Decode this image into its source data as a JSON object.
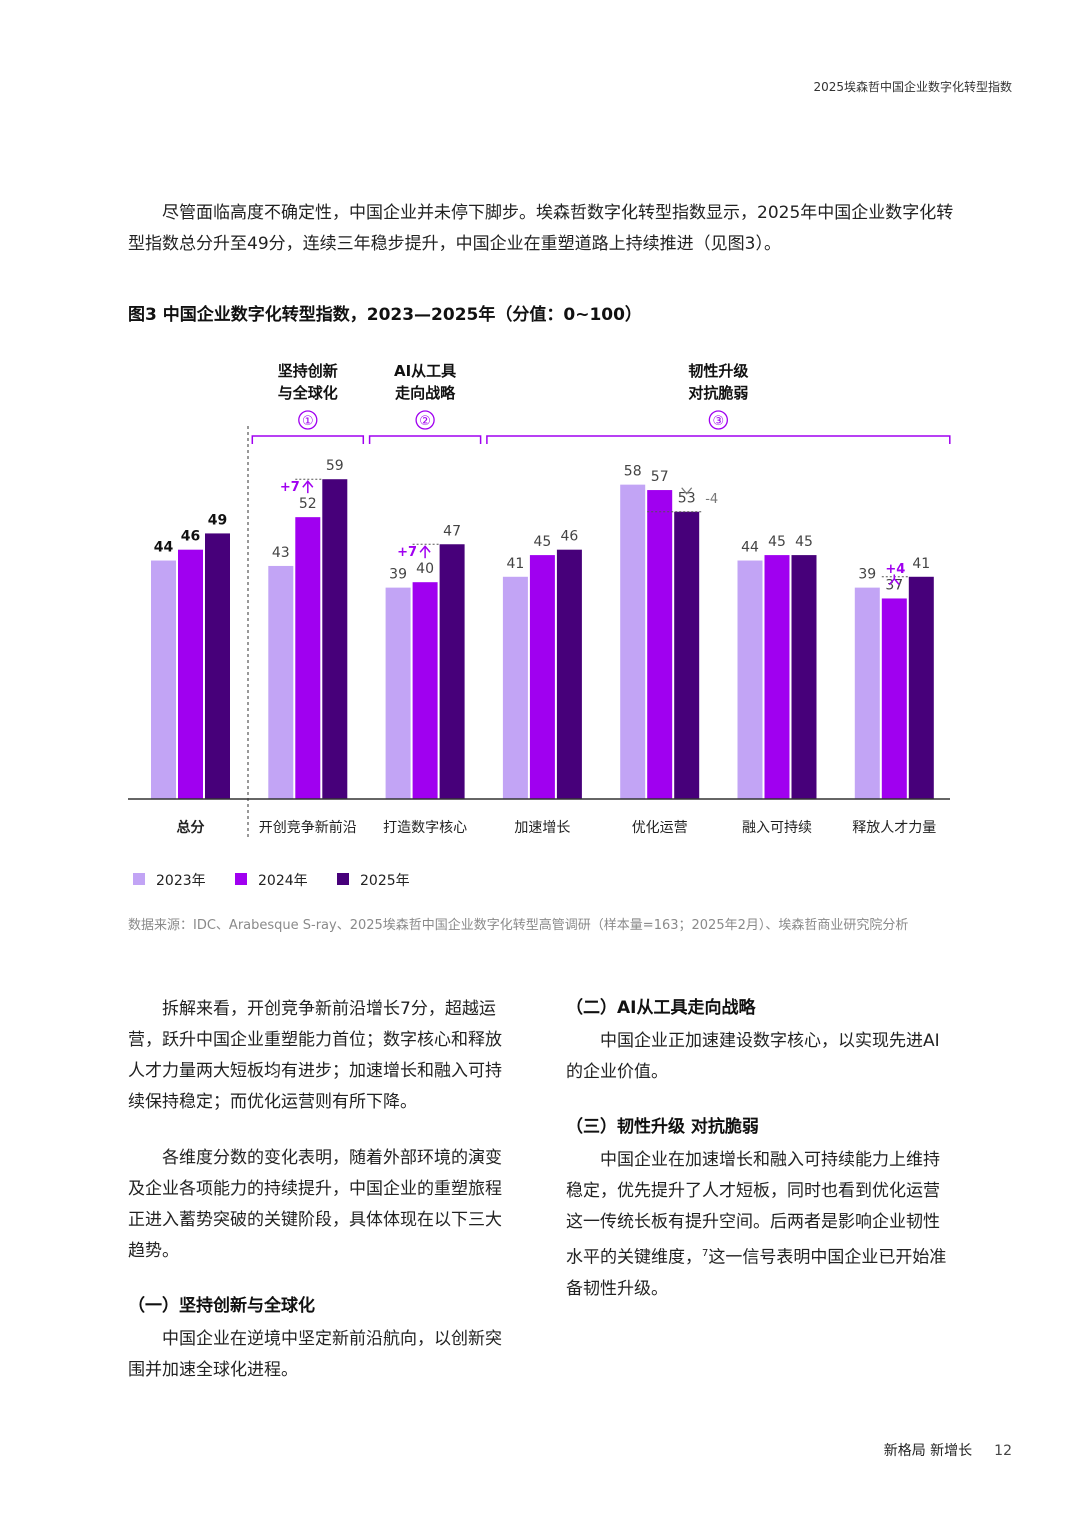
{
  "header": "2025埃森哲中国企业数字化转型指数",
  "intro": "尽管面临高度不确定性，中国企业并未停下脚步。埃森哲数字化转型指数显示，2025年中国企业数字化转型指数总分升至49分，连续三年稳步提升，中国企业在重塑道路上持续推进（见图3）。",
  "figure_title": "图3  中国企业数字化转型指数，2023—2025年（分值：0~100）",
  "source": "数据来源：IDC、Arabesque S-ray、2025埃森哲中国企业数字化转型高管调研（样本量=163；2025年2月）、埃森哲商业研究院分析",
  "chart_data": {
    "type": "bar",
    "categories": [
      "总分",
      "开创竞争新前沿",
      "打造数字核心",
      "加速增长",
      "优化运营",
      "融入可持续",
      "释放人才力量"
    ],
    "series": [
      {
        "name": "2023年",
        "values": [
          44,
          43,
          39,
          41,
          58,
          44,
          39
        ]
      },
      {
        "name": "2024年",
        "values": [
          46,
          52,
          40,
          45,
          57,
          45,
          37
        ]
      },
      {
        "name": "2025年",
        "values": [
          49,
          59,
          47,
          46,
          53,
          45,
          41
        ]
      }
    ],
    "colors": [
      "#c2a4f5",
      "#a000f0",
      "#47007a"
    ],
    "ylim": [
      0,
      62
    ],
    "legend_position": "bottom-left",
    "groups": [
      {
        "num": "①",
        "line1": "坚持创新",
        "line2": "与全球化",
        "from": 1,
        "to": 1
      },
      {
        "num": "②",
        "line1": "AI从工具",
        "line2": "走向战略",
        "from": 2,
        "to": 2
      },
      {
        "num": "③",
        "line1": "韧性升级",
        "line2": "对抗脆弱",
        "from": 3,
        "to": 6
      }
    ],
    "changes": [
      {
        "category": 1,
        "label": "+7",
        "direction": "up",
        "from": 52,
        "to": 59
      },
      {
        "category": 2,
        "label": "+7",
        "direction": "up",
        "from": 40,
        "to": 47
      },
      {
        "category": 4,
        "label": "-4",
        "direction": "down",
        "from": 57,
        "to": 53
      },
      {
        "category": 6,
        "label": "+4",
        "direction": "up",
        "from": 37,
        "to": 41
      }
    ]
  },
  "left_column": {
    "p1": "拆解来看，开创竞争新前沿增长7分，超越运营，跃升中国企业重塑能力首位；数字核心和释放人才力量两大短板均有进步；加速增长和融入可持续保持稳定；而优化运营则有所下降。",
    "p2": "各维度分数的变化表明，随着外部环境的演变及企业各项能力的持续提升，中国企业的重塑旅程正进入蓄势突破的关键阶段，具体体现在以下三大趋势。",
    "h1": "（一）坚持创新与全球化",
    "p3": "中国企业在逆境中坚定新前沿航向，以创新突围并加速全球化进程。"
  },
  "right_column": {
    "h2": "（二）AI从工具走向战略",
    "p4": "中国企业正加速建设数字核心，以实现先进AI的企业价值。",
    "h3": "（三）韧性升级 对抗脆弱",
    "p5": "中国企业在加速增长和融入可持续能力上维持稳定，优先提升了人才短板，同时也看到优化运营这一传统长板有提升空间。后两者是影响企业韧性水平的关键维度，",
    "footnote": "7",
    "p5_end": "这一信号表明中国企业已开始准备韧性升级。"
  },
  "footer": {
    "title": "新格局 新增长",
    "page": "12"
  }
}
